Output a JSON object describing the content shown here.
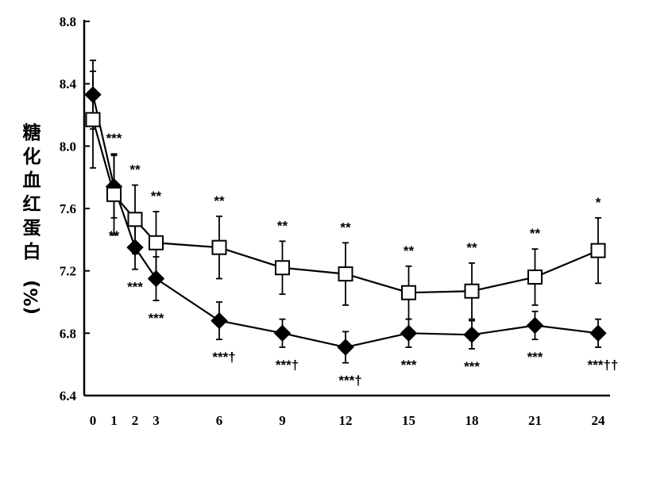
{
  "chart_data": {
    "type": "line",
    "title": "",
    "xlabel": "",
    "ylabel": "糖化血红蛋白(%)",
    "xlim": [
      0,
      24
    ],
    "ylim": [
      6.4,
      8.8
    ],
    "x_ticks": [
      0,
      1,
      2,
      3,
      6,
      9,
      12,
      15,
      18,
      21,
      24
    ],
    "y_ticks": [
      "6.4",
      "6.8",
      "7.2",
      "7.6",
      "8.0",
      "8.4",
      "8.8"
    ],
    "grid": false,
    "legend": "none",
    "series": [
      {
        "marker": "filled-diamond",
        "color": "#000000",
        "x": [
          0,
          1,
          2,
          3,
          6,
          9,
          12,
          15,
          18,
          21,
          24
        ],
        "values": [
          8.33,
          7.74,
          7.35,
          7.15,
          6.88,
          6.8,
          6.71,
          6.8,
          6.79,
          6.85,
          6.8
        ],
        "error": [
          0.22,
          0.2,
          0.14,
          0.14,
          0.12,
          0.09,
          0.1,
          0.09,
          0.09,
          0.09,
          0.09
        ],
        "annotations": [
          "",
          "**",
          "***",
          "***",
          "***†",
          "***†",
          "***†",
          "***",
          "***",
          "***",
          "***††"
        ]
      },
      {
        "marker": "open-square",
        "color": "#000000",
        "x": [
          0,
          1,
          2,
          3,
          6,
          9,
          12,
          15,
          18,
          21,
          24
        ],
        "values": [
          8.17,
          7.69,
          7.53,
          7.38,
          7.35,
          7.22,
          7.18,
          7.06,
          7.07,
          7.16,
          7.33
        ],
        "error": [
          0.31,
          0.26,
          0.22,
          0.2,
          0.2,
          0.17,
          0.2,
          0.17,
          0.18,
          0.18,
          0.21
        ],
        "annotations": [
          "",
          "***",
          "**",
          "**",
          "**",
          "**",
          "**",
          "**",
          "**",
          "**",
          "*"
        ]
      }
    ]
  }
}
